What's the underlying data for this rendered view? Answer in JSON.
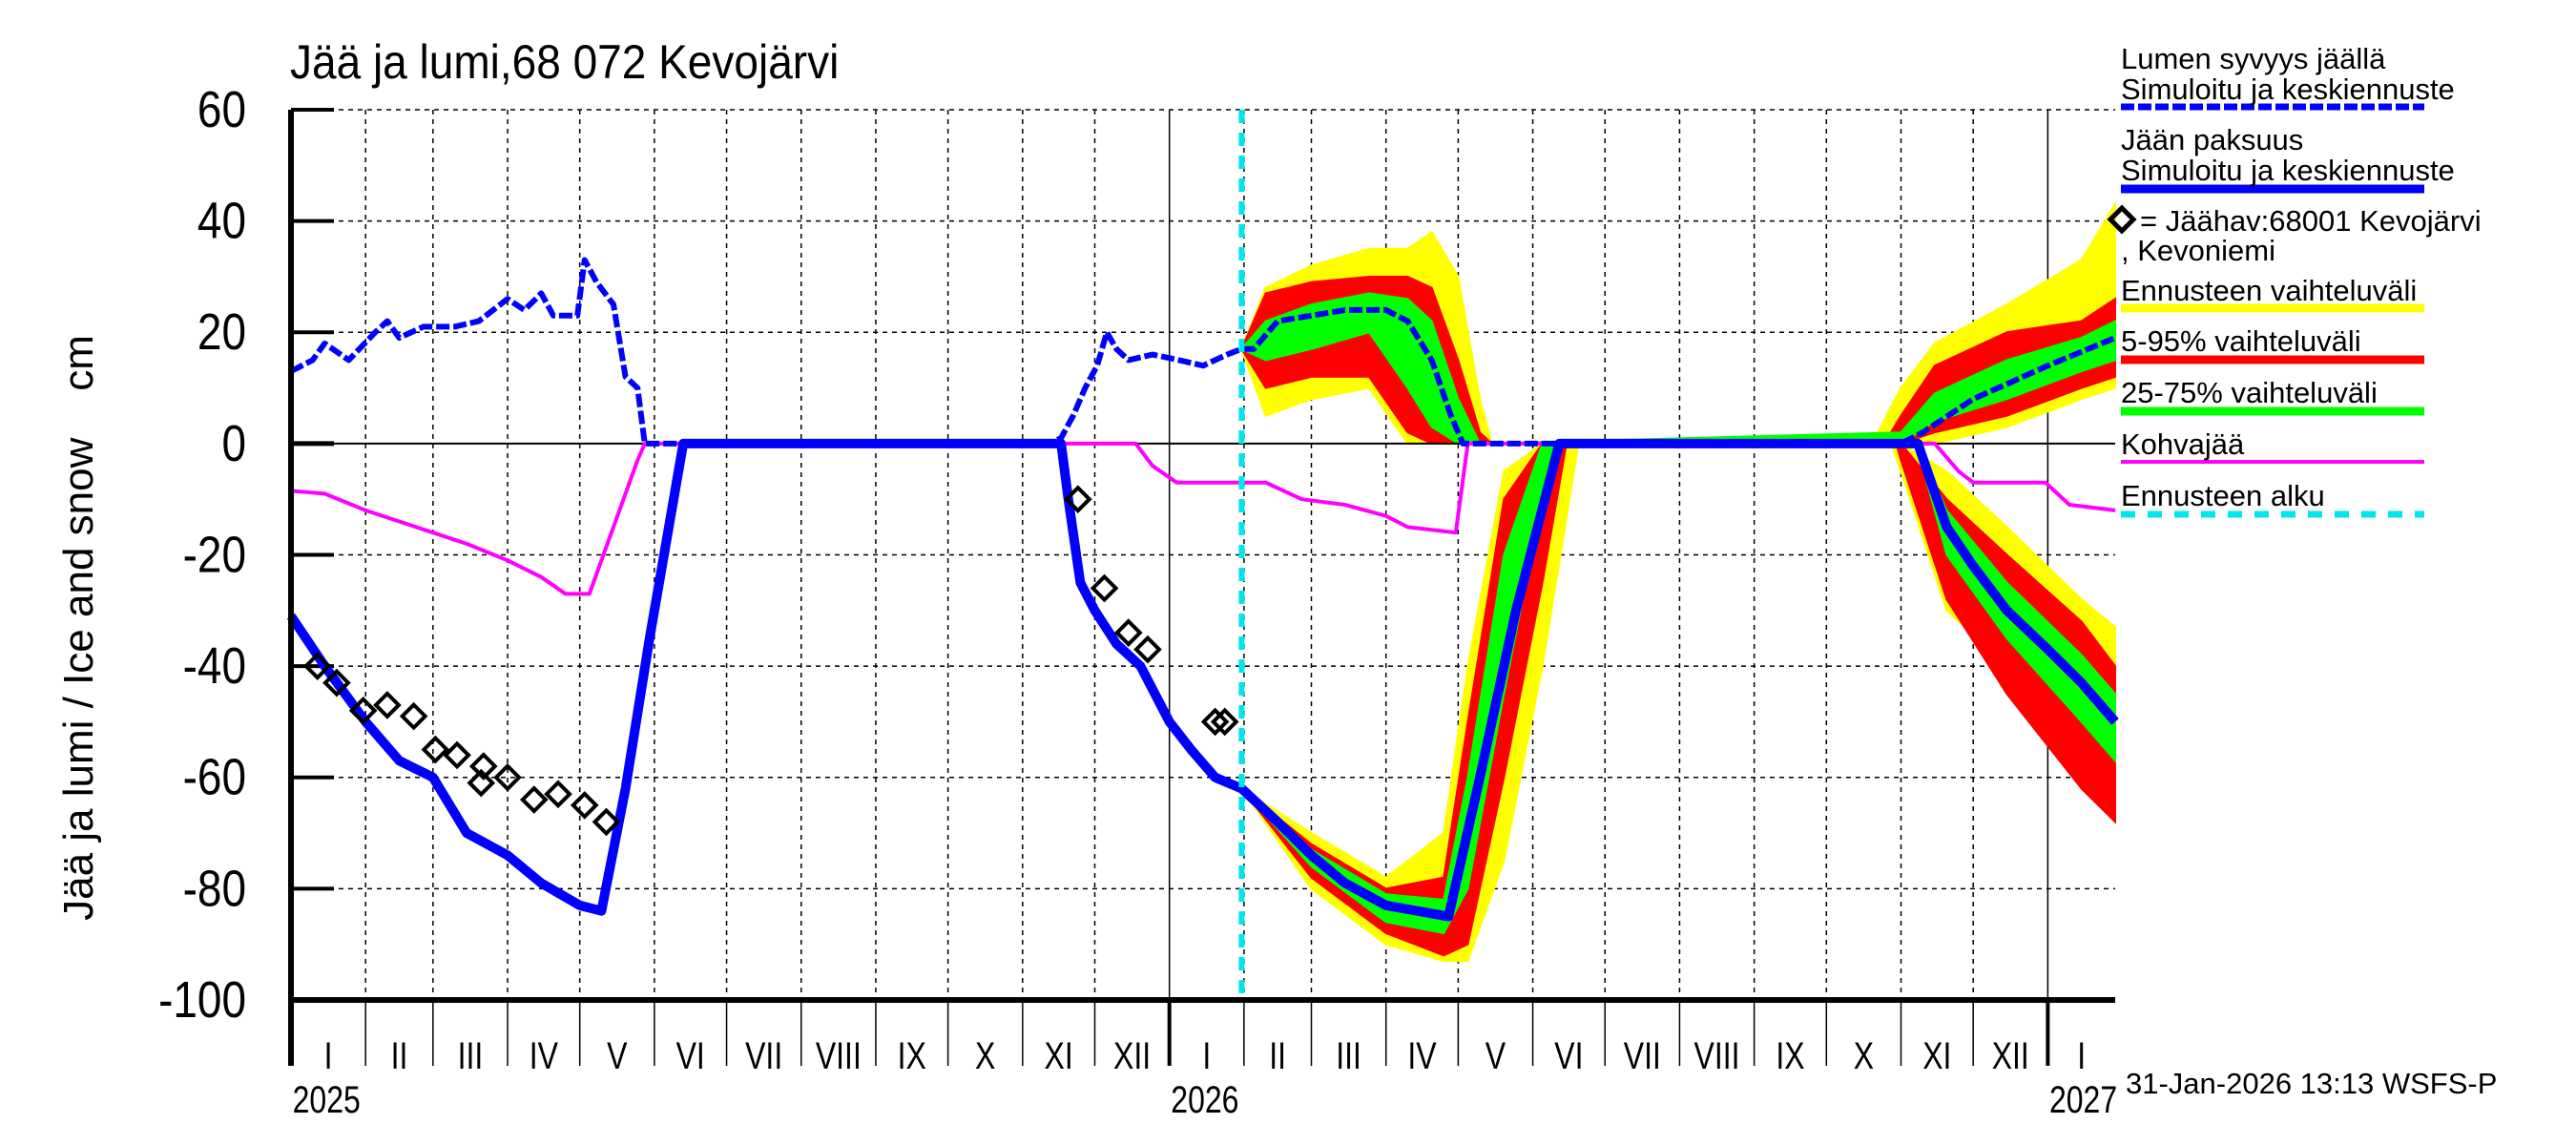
{
  "chart_data": {
    "type": "line",
    "title": "Jää ja lumi,68 072 Kevojärvi",
    "ylabel": "Jää ja lumi / Ice and snow    cm",
    "ylim": [
      -100,
      60
    ],
    "yticks": [
      60,
      40,
      20,
      0,
      -20,
      -40,
      -60,
      -80,
      -100
    ],
    "xlim": [
      "2025-01-01",
      "2027-01-29"
    ],
    "month_labels": [
      "I",
      "II",
      "III",
      "IV",
      "V",
      "VI",
      "VII",
      "VIII",
      "IX",
      "X",
      "XI",
      "XII"
    ],
    "year_labels": [
      "2025",
      "2026",
      "2027"
    ],
    "grid": true,
    "legend_position": "right",
    "forecast_start": "2026-01-31",
    "timestamp": "31-Jan-2026 13:13 WSFS-P",
    "colors": {
      "snow": "#0000ff",
      "ice": "#0000ff",
      "slush": "#ff00ff",
      "range_full": "#ffff00",
      "range_5_95": "#ff0000",
      "range_25_75": "#00ff00",
      "forecast_start": "#00e5ee",
      "observation": "#000000"
    },
    "legend": {
      "snow_title": "Lumen syvyys jäällä",
      "snow_sub": "Simuloitu ja keskiennuste",
      "ice_title": "Jään paksuus",
      "ice_sub": "Simuloitu ja keskiennuste",
      "obs_line1": "= Jäähav:68001 Kevojärvi",
      "obs_line2": ", Kevoniemi",
      "range_full": "Ennusteen vaihteluväli",
      "range_5_95": "5-95% vaihteluväli",
      "range_25_75": "25-75% vaihteluväli",
      "slush": "Kohvajää",
      "forecast_start": "Ennusteen alku"
    },
    "series": {
      "snow_depth": [
        [
          "2025-01-01",
          13
        ],
        [
          "2025-01-10",
          15
        ],
        [
          "2025-01-15",
          18
        ],
        [
          "2025-01-25",
          15
        ],
        [
          "2025-02-05",
          20
        ],
        [
          "2025-02-10",
          22
        ],
        [
          "2025-02-15",
          19
        ],
        [
          "2025-02-25",
          21
        ],
        [
          "2025-03-10",
          21
        ],
        [
          "2025-03-20",
          22
        ],
        [
          "2025-04-01",
          26
        ],
        [
          "2025-04-08",
          24
        ],
        [
          "2025-04-15",
          27
        ],
        [
          "2025-04-20",
          23
        ],
        [
          "2025-04-30",
          23
        ],
        [
          "2025-05-03",
          33
        ],
        [
          "2025-05-08",
          29
        ],
        [
          "2025-05-15",
          25
        ],
        [
          "2025-05-20",
          12
        ],
        [
          "2025-05-25",
          10
        ],
        [
          "2025-05-28",
          0
        ],
        [
          "2025-11-12",
          0
        ],
        [
          "2025-11-17",
          1
        ],
        [
          "2025-11-22",
          5
        ],
        [
          "2025-11-27",
          10
        ],
        [
          "2025-12-02",
          14
        ],
        [
          "2025-12-06",
          20
        ],
        [
          "2025-12-10",
          17
        ],
        [
          "2025-12-15",
          15
        ],
        [
          "2025-12-25",
          16
        ],
        [
          "2026-01-05",
          15
        ],
        [
          "2026-01-15",
          14
        ],
        [
          "2026-01-25",
          16
        ],
        [
          "2026-01-31",
          17
        ],
        [
          "2026-02-05",
          17
        ],
        [
          "2026-02-15",
          22
        ],
        [
          "2026-03-01",
          23
        ],
        [
          "2026-03-15",
          24
        ],
        [
          "2026-04-01",
          24
        ],
        [
          "2026-04-10",
          22
        ],
        [
          "2026-04-20",
          15
        ],
        [
          "2026-04-28",
          5
        ],
        [
          "2026-05-03",
          0
        ],
        [
          "2026-11-01",
          0
        ],
        [
          "2026-11-10",
          2
        ],
        [
          "2026-12-01",
          8
        ],
        [
          "2027-01-01",
          14
        ],
        [
          "2027-01-29",
          19
        ]
      ],
      "ice_thickness": [
        [
          "2025-01-01",
          -31
        ],
        [
          "2025-01-15",
          -40
        ],
        [
          "2025-02-01",
          -50
        ],
        [
          "2025-02-15",
          -57
        ],
        [
          "2025-03-01",
          -60
        ],
        [
          "2025-03-15",
          -70
        ],
        [
          "2025-04-01",
          -74
        ],
        [
          "2025-04-15",
          -79
        ],
        [
          "2025-05-01",
          -83
        ],
        [
          "2025-05-10",
          -84
        ],
        [
          "2025-05-20",
          -62
        ],
        [
          "2025-05-30",
          -35
        ],
        [
          "2025-06-13",
          0
        ],
        [
          "2025-11-17",
          0
        ],
        [
          "2025-11-20",
          -10
        ],
        [
          "2025-11-25",
          -25
        ],
        [
          "2025-12-01",
          -30
        ],
        [
          "2025-12-10",
          -36
        ],
        [
          "2025-12-20",
          -40
        ],
        [
          "2026-01-01",
          -50
        ],
        [
          "2026-01-10",
          -55
        ],
        [
          "2026-01-20",
          -60
        ],
        [
          "2026-01-31",
          -62
        ],
        [
          "2026-02-15",
          -68
        ],
        [
          "2026-03-01",
          -74
        ],
        [
          "2026-03-15",
          -79
        ],
        [
          "2026-04-01",
          -83
        ],
        [
          "2026-04-27",
          -85
        ],
        [
          "2026-05-10",
          -60
        ],
        [
          "2026-05-25",
          -30
        ],
        [
          "2026-06-12",
          0
        ],
        [
          "2026-11-08",
          0
        ],
        [
          "2026-11-20",
          -15
        ],
        [
          "2026-12-01",
          -22
        ],
        [
          "2026-12-15",
          -30
        ],
        [
          "2027-01-01",
          -37
        ],
        [
          "2027-01-15",
          -43
        ],
        [
          "2027-01-29",
          -50
        ]
      ],
      "slush_ice": [
        [
          "2025-01-01",
          -8.5
        ],
        [
          "2025-01-15",
          -9
        ],
        [
          "2025-02-01",
          -12
        ],
        [
          "2025-02-15",
          -14
        ],
        [
          "2025-03-01",
          -16
        ],
        [
          "2025-03-15",
          -18
        ],
        [
          "2025-04-01",
          -21
        ],
        [
          "2025-04-15",
          -24
        ],
        [
          "2025-04-25",
          -27
        ],
        [
          "2025-05-05",
          -27
        ],
        [
          "2025-05-15",
          -15
        ],
        [
          "2025-05-25",
          -3
        ],
        [
          "2025-05-28",
          0
        ],
        [
          "2025-12-18",
          0
        ],
        [
          "2025-12-25",
          -4
        ],
        [
          "2026-01-04",
          -7
        ],
        [
          "2026-02-10",
          -7
        ],
        [
          "2026-02-25",
          -10
        ],
        [
          "2026-03-15",
          -11
        ],
        [
          "2026-04-01",
          -13
        ],
        [
          "2026-04-10",
          -15
        ],
        [
          "2026-04-30",
          -16
        ],
        [
          "2026-05-05",
          0
        ],
        [
          "2026-11-15",
          0
        ],
        [
          "2026-11-25",
          -5
        ],
        [
          "2026-12-01",
          -7
        ],
        [
          "2026-12-31",
          -7
        ],
        [
          "2027-01-10",
          -11
        ],
        [
          "2027-01-29",
          -12
        ]
      ],
      "observations": [
        [
          "2025-01-12",
          -40
        ],
        [
          "2025-01-20",
          -43
        ],
        [
          "2025-01-31",
          -48
        ],
        [
          "2025-02-10",
          -47
        ],
        [
          "2025-02-21",
          -49
        ],
        [
          "2025-03-02",
          -55
        ],
        [
          "2025-03-11",
          -56
        ],
        [
          "2025-03-21",
          -61
        ],
        [
          "2025-03-22",
          -58
        ],
        [
          "2025-04-01",
          -60
        ],
        [
          "2025-04-12",
          -64
        ],
        [
          "2025-04-22",
          -63
        ],
        [
          "2025-05-03",
          -65
        ],
        [
          "2025-05-12",
          -68
        ],
        [
          "2025-11-24",
          -10
        ],
        [
          "2025-12-05",
          -26
        ],
        [
          "2025-12-15",
          -34
        ],
        [
          "2025-12-23",
          -37
        ],
        [
          "2026-01-20",
          -50
        ],
        [
          "2026-01-24",
          -50
        ]
      ]
    },
    "bands": {
      "snow": {
        "range_full": [
          [
            "2026-01-31",
            17,
            17
          ],
          [
            "2026-02-10",
            5,
            28
          ],
          [
            "2026-03-01",
            8,
            32
          ],
          [
            "2026-03-25",
            10,
            35
          ],
          [
            "2026-04-10",
            0,
            35
          ],
          [
            "2026-04-20",
            0,
            38
          ],
          [
            "2026-05-01",
            0,
            30
          ],
          [
            "2026-05-10",
            0,
            8
          ],
          [
            "2026-05-15",
            0,
            0
          ],
          [
            "2026-10-20",
            0,
            0
          ],
          [
            "2026-11-01",
            0,
            10
          ],
          [
            "2026-11-15",
            0,
            18
          ],
          [
            "2026-12-15",
            3,
            25
          ],
          [
            "2027-01-15",
            8,
            33
          ],
          [
            "2027-01-29",
            10,
            43
          ]
        ],
        "range_5_95": [
          [
            "2026-01-31",
            17,
            17
          ],
          [
            "2026-02-10",
            10,
            27
          ],
          [
            "2026-03-01",
            12,
            29
          ],
          [
            "2026-03-25",
            12,
            30
          ],
          [
            "2026-04-10",
            2,
            30
          ],
          [
            "2026-04-20",
            0,
            28
          ],
          [
            "2026-05-01",
            0,
            15
          ],
          [
            "2026-05-10",
            0,
            2
          ],
          [
            "2026-05-15",
            0,
            0
          ],
          [
            "2026-10-25",
            0,
            0
          ],
          [
            "2026-11-01",
            0,
            5
          ],
          [
            "2026-11-15",
            2,
            14
          ],
          [
            "2026-12-15",
            5,
            20
          ],
          [
            "2027-01-15",
            10,
            22
          ],
          [
            "2027-01-29",
            12,
            26
          ]
        ],
        "range_25_75": [
          [
            "2026-01-31",
            17,
            17
          ],
          [
            "2026-02-10",
            15,
            22
          ],
          [
            "2026-03-01",
            17,
            25
          ],
          [
            "2026-03-25",
            20,
            27
          ],
          [
            "2026-04-10",
            10,
            26
          ],
          [
            "2026-04-20",
            3,
            22
          ],
          [
            "2026-05-01",
            0,
            8
          ],
          [
            "2026-05-10",
            0,
            0
          ],
          [
            "2026-11-01",
            0,
            2
          ],
          [
            "2026-11-15",
            4,
            9
          ],
          [
            "2026-12-15",
            8,
            15
          ],
          [
            "2027-01-15",
            13,
            19
          ],
          [
            "2027-01-29",
            15,
            22
          ]
        ]
      },
      "ice": {
        "range_full": [
          [
            "2026-01-31",
            -62,
            -62
          ],
          [
            "2026-03-01",
            -80,
            -70
          ],
          [
            "2026-04-01",
            -90,
            -78
          ],
          [
            "2026-04-25",
            -93,
            -70
          ],
          [
            "2026-05-05",
            -93,
            -40
          ],
          [
            "2026-05-20",
            -75,
            -5
          ],
          [
            "2026-06-05",
            -40,
            0
          ],
          [
            "2026-06-20",
            0,
            0
          ],
          [
            "2026-10-28",
            0,
            0
          ],
          [
            "2026-11-01",
            -5,
            0
          ],
          [
            "2026-11-20",
            -30,
            -5
          ],
          [
            "2026-12-15",
            -40,
            -15
          ],
          [
            "2027-01-15",
            -60,
            -28
          ],
          [
            "2027-01-29",
            -68,
            -33
          ]
        ],
        "range_5_95": [
          [
            "2026-01-31",
            -62,
            -62
          ],
          [
            "2026-03-01",
            -78,
            -72
          ],
          [
            "2026-04-01",
            -88,
            -80
          ],
          [
            "2026-04-25",
            -92,
            -78
          ],
          [
            "2026-05-05",
            -90,
            -50
          ],
          [
            "2026-05-20",
            -60,
            -10
          ],
          [
            "2026-06-05",
            -25,
            0
          ],
          [
            "2026-06-15",
            0,
            0
          ],
          [
            "2026-10-30",
            0,
            0
          ],
          [
            "2026-11-01",
            -3,
            0
          ],
          [
            "2026-11-20",
            -28,
            -10
          ],
          [
            "2026-12-15",
            -45,
            -20
          ],
          [
            "2027-01-15",
            -62,
            -32
          ],
          [
            "2027-01-29",
            -68,
            -40
          ]
        ],
        "range_25_75": [
          [
            "2026-01-31",
            -62,
            -62
          ],
          [
            "2026-03-01",
            -76,
            -73
          ],
          [
            "2026-04-01",
            -86,
            -81
          ],
          [
            "2026-04-25",
            -88,
            -82
          ],
          [
            "2026-05-05",
            -80,
            -60
          ],
          [
            "2026-05-20",
            -45,
            -20
          ],
          [
            "2026-06-05",
            -10,
            0
          ],
          [
            "2026-06-12",
            0,
            0
          ],
          [
            "2026-11-05",
            0,
            0
          ],
          [
            "2026-11-08",
            -1,
            0
          ],
          [
            "2026-11-20",
            -20,
            -12
          ],
          [
            "2026-12-15",
            -35,
            -25
          ],
          [
            "2027-01-15",
            -50,
            -38
          ],
          [
            "2027-01-29",
            -57,
            -45
          ]
        ]
      }
    }
  }
}
